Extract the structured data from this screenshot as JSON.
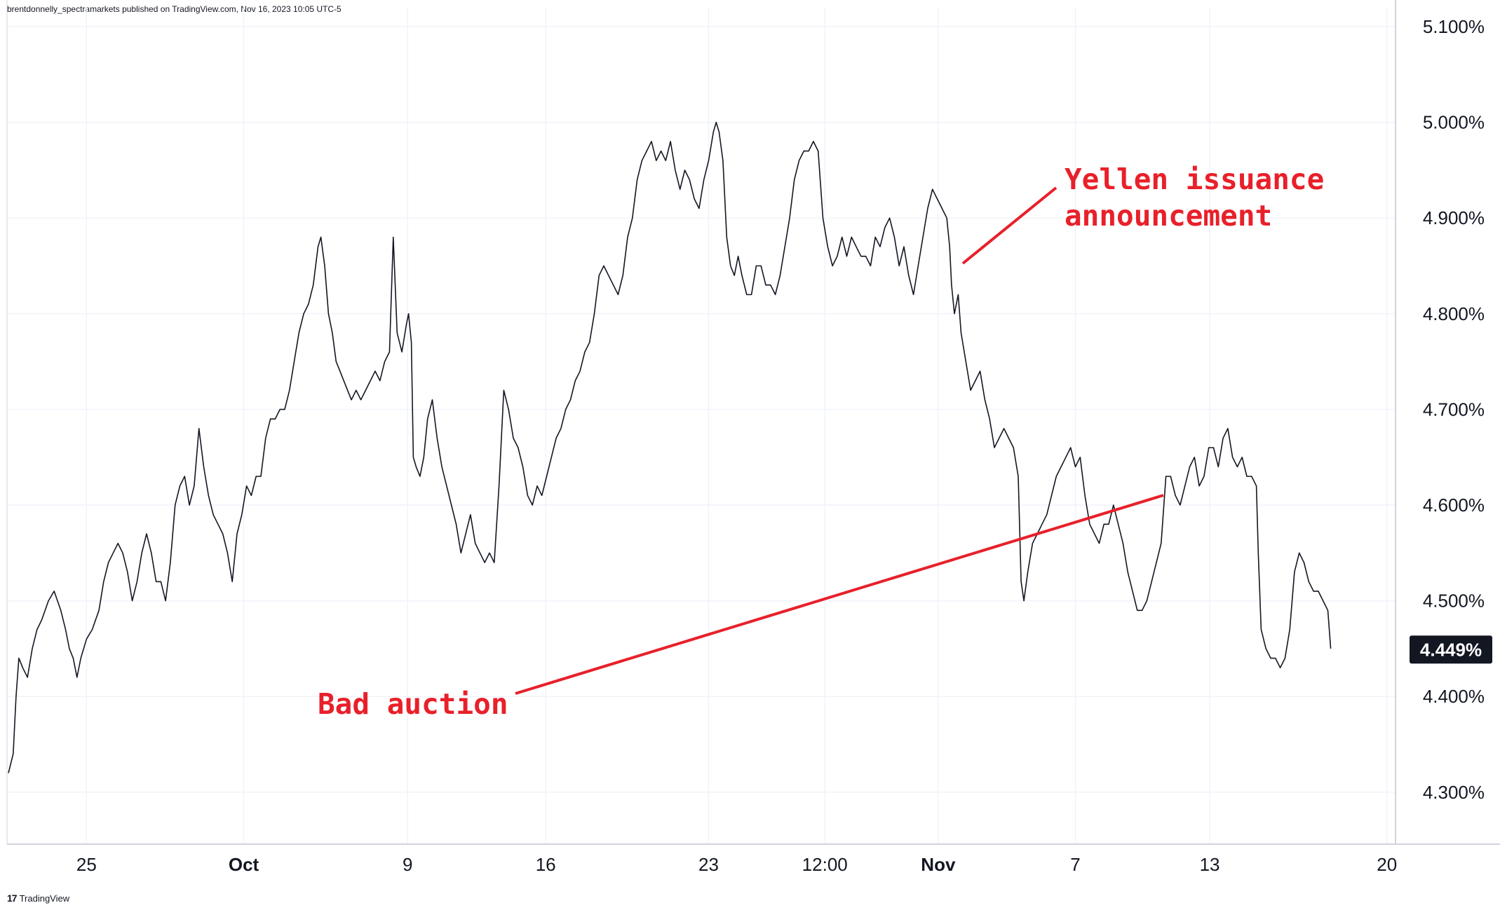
{
  "header": {
    "published_text": "brentdonnelly_spectramarkets published on TradingView.com, Nov 16, 2023 10:05 UTC-5"
  },
  "footer": {
    "logo_glyph": "17",
    "brand": "TradingView"
  },
  "colors": {
    "line": "#131722",
    "annotation": "#e8202a",
    "grid": "#f0f3fa",
    "badge_bg": "#131722",
    "badge_text": "#ffffff"
  },
  "chart_data": {
    "type": "line",
    "title": "",
    "xlabel": "",
    "ylabel": "",
    "ylim": [
      4.22,
      5.12
    ],
    "xlim": [
      0,
      1445
    ],
    "y_ticks": [
      {
        "value": 5.1,
        "label": "5.100%"
      },
      {
        "value": 5.0,
        "label": "5.000%"
      },
      {
        "value": 4.9,
        "label": "4.900%"
      },
      {
        "value": 4.8,
        "label": "4.800%"
      },
      {
        "value": 4.7,
        "label": "4.700%"
      },
      {
        "value": 4.6,
        "label": "4.600%"
      },
      {
        "value": 4.5,
        "label": "4.500%"
      },
      {
        "value": 4.4,
        "label": "4.400%"
      },
      {
        "value": 4.3,
        "label": "4.300%"
      }
    ],
    "x_ticks": [
      {
        "x": 82,
        "label": "25"
      },
      {
        "x": 247,
        "label": "Oct"
      },
      {
        "x": 419,
        "label": "9"
      },
      {
        "x": 564,
        "label": "16"
      },
      {
        "x": 735,
        "label": "23"
      },
      {
        "x": 857,
        "label": "12:00"
      },
      {
        "x": 976,
        "label": "Nov"
      },
      {
        "x": 1120,
        "label": "7"
      },
      {
        "x": 1261,
        "label": "13"
      },
      {
        "x": 1447,
        "label": "20"
      }
    ],
    "last_value": {
      "value": 4.449,
      "label": "4.449%"
    },
    "series": [
      {
        "points": [
          [
            0,
            4.32
          ],
          [
            5,
            4.34
          ],
          [
            8,
            4.4
          ],
          [
            11,
            4.44
          ],
          [
            15,
            4.43
          ],
          [
            20,
            4.42
          ],
          [
            25,
            4.45
          ],
          [
            30,
            4.47
          ],
          [
            35,
            4.48
          ],
          [
            42,
            4.5
          ],
          [
            48,
            4.51
          ],
          [
            55,
            4.49
          ],
          [
            60,
            4.47
          ],
          [
            64,
            4.45
          ],
          [
            68,
            4.44
          ],
          [
            72,
            4.42
          ],
          [
            76,
            4.44
          ],
          [
            82,
            4.46
          ],
          [
            88,
            4.47
          ],
          [
            95,
            4.49
          ],
          [
            100,
            4.52
          ],
          [
            105,
            4.54
          ],
          [
            110,
            4.55
          ],
          [
            115,
            4.56
          ],
          [
            120,
            4.55
          ],
          [
            125,
            4.53
          ],
          [
            130,
            4.5
          ],
          [
            135,
            4.52
          ],
          [
            140,
            4.55
          ],
          [
            145,
            4.57
          ],
          [
            150,
            4.55
          ],
          [
            155,
            4.52
          ],
          [
            160,
            4.52
          ],
          [
            165,
            4.5
          ],
          [
            170,
            4.54
          ],
          [
            175,
            4.6
          ],
          [
            180,
            4.62
          ],
          [
            185,
            4.63
          ],
          [
            190,
            4.6
          ],
          [
            195,
            4.62
          ],
          [
            200,
            4.68
          ],
          [
            205,
            4.64
          ],
          [
            210,
            4.61
          ],
          [
            215,
            4.59
          ],
          [
            220,
            4.58
          ],
          [
            225,
            4.57
          ],
          [
            230,
            4.55
          ],
          [
            235,
            4.52
          ],
          [
            240,
            4.57
          ],
          [
            245,
            4.59
          ],
          [
            250,
            4.62
          ],
          [
            255,
            4.61
          ],
          [
            260,
            4.63
          ],
          [
            265,
            4.63
          ],
          [
            270,
            4.67
          ],
          [
            275,
            4.69
          ],
          [
            280,
            4.69
          ],
          [
            285,
            4.7
          ],
          [
            290,
            4.7
          ],
          [
            295,
            4.72
          ],
          [
            300,
            4.75
          ],
          [
            305,
            4.78
          ],
          [
            310,
            4.8
          ],
          [
            315,
            4.81
          ],
          [
            320,
            4.83
          ],
          [
            325,
            4.87
          ],
          [
            328,
            4.88
          ],
          [
            332,
            4.85
          ],
          [
            336,
            4.8
          ],
          [
            340,
            4.78
          ],
          [
            344,
            4.75
          ],
          [
            348,
            4.74
          ],
          [
            352,
            4.73
          ],
          [
            356,
            4.72
          ],
          [
            360,
            4.71
          ],
          [
            365,
            4.72
          ],
          [
            370,
            4.71
          ],
          [
            375,
            4.72
          ],
          [
            380,
            4.73
          ],
          [
            385,
            4.74
          ],
          [
            390,
            4.73
          ],
          [
            395,
            4.75
          ],
          [
            400,
            4.76
          ],
          [
            404,
            4.88
          ],
          [
            408,
            4.78
          ],
          [
            413,
            4.76
          ],
          [
            418,
            4.79
          ],
          [
            420,
            4.8
          ],
          [
            423,
            4.77
          ],
          [
            425,
            4.65
          ],
          [
            428,
            4.64
          ],
          [
            432,
            4.63
          ],
          [
            436,
            4.65
          ],
          [
            440,
            4.69
          ],
          [
            445,
            4.71
          ],
          [
            450,
            4.67
          ],
          [
            455,
            4.64
          ],
          [
            460,
            4.62
          ],
          [
            465,
            4.6
          ],
          [
            470,
            4.58
          ],
          [
            475,
            4.55
          ],
          [
            480,
            4.57
          ],
          [
            485,
            4.59
          ],
          [
            490,
            4.56
          ],
          [
            495,
            4.55
          ],
          [
            500,
            4.54
          ],
          [
            505,
            4.55
          ],
          [
            510,
            4.54
          ],
          [
            515,
            4.62
          ],
          [
            520,
            4.72
          ],
          [
            525,
            4.7
          ],
          [
            530,
            4.67
          ],
          [
            535,
            4.66
          ],
          [
            540,
            4.64
          ],
          [
            545,
            4.61
          ],
          [
            550,
            4.6
          ],
          [
            555,
            4.62
          ],
          [
            560,
            4.61
          ],
          [
            565,
            4.63
          ],
          [
            570,
            4.65
          ],
          [
            575,
            4.67
          ],
          [
            580,
            4.68
          ],
          [
            585,
            4.7
          ],
          [
            590,
            4.71
          ],
          [
            595,
            4.73
          ],
          [
            600,
            4.74
          ],
          [
            605,
            4.76
          ],
          [
            610,
            4.77
          ],
          [
            615,
            4.8
          ],
          [
            620,
            4.84
          ],
          [
            625,
            4.85
          ],
          [
            630,
            4.84
          ],
          [
            635,
            4.83
          ],
          [
            640,
            4.82
          ],
          [
            645,
            4.84
          ],
          [
            650,
            4.88
          ],
          [
            655,
            4.9
          ],
          [
            660,
            4.94
          ],
          [
            665,
            4.96
          ],
          [
            670,
            4.97
          ],
          [
            675,
            4.98
          ],
          [
            680,
            4.96
          ],
          [
            685,
            4.97
          ],
          [
            690,
            4.96
          ],
          [
            695,
            4.98
          ],
          [
            700,
            4.95
          ],
          [
            705,
            4.93
          ],
          [
            710,
            4.95
          ],
          [
            715,
            4.94
          ],
          [
            720,
            4.92
          ],
          [
            725,
            4.91
          ],
          [
            730,
            4.94
          ],
          [
            735,
            4.96
          ],
          [
            740,
            4.99
          ],
          [
            743,
            5.0
          ],
          [
            746,
            4.99
          ],
          [
            750,
            4.96
          ],
          [
            754,
            4.88
          ],
          [
            758,
            4.85
          ],
          [
            762,
            4.84
          ],
          [
            766,
            4.86
          ],
          [
            770,
            4.84
          ],
          [
            775,
            4.82
          ],
          [
            780,
            4.82
          ],
          [
            785,
            4.85
          ],
          [
            790,
            4.85
          ],
          [
            795,
            4.83
          ],
          [
            800,
            4.83
          ],
          [
            805,
            4.82
          ],
          [
            810,
            4.84
          ],
          [
            815,
            4.87
          ],
          [
            820,
            4.9
          ],
          [
            825,
            4.94
          ],
          [
            830,
            4.96
          ],
          [
            835,
            4.97
          ],
          [
            840,
            4.97
          ],
          [
            845,
            4.98
          ],
          [
            850,
            4.97
          ],
          [
            855,
            4.9
          ],
          [
            860,
            4.87
          ],
          [
            865,
            4.85
          ],
          [
            870,
            4.86
          ],
          [
            875,
            4.88
          ],
          [
            880,
            4.86
          ],
          [
            885,
            4.88
          ],
          [
            890,
            4.87
          ],
          [
            895,
            4.86
          ],
          [
            900,
            4.86
          ],
          [
            905,
            4.85
          ],
          [
            910,
            4.88
          ],
          [
            915,
            4.87
          ],
          [
            920,
            4.89
          ],
          [
            925,
            4.9
          ],
          [
            930,
            4.88
          ],
          [
            935,
            4.85
          ],
          [
            940,
            4.87
          ],
          [
            945,
            4.84
          ],
          [
            950,
            4.82
          ],
          [
            955,
            4.85
          ],
          [
            960,
            4.88
          ],
          [
            965,
            4.91
          ],
          [
            970,
            4.93
          ],
          [
            975,
            4.92
          ],
          [
            980,
            4.91
          ],
          [
            985,
            4.9
          ],
          [
            988,
            4.87
          ],
          [
            990,
            4.83
          ],
          [
            993,
            4.8
          ],
          [
            997,
            4.82
          ],
          [
            1000,
            4.78
          ],
          [
            1005,
            4.75
          ],
          [
            1010,
            4.72
          ],
          [
            1015,
            4.73
          ],
          [
            1020,
            4.74
          ],
          [
            1025,
            4.71
          ],
          [
            1030,
            4.69
          ],
          [
            1035,
            4.66
          ],
          [
            1040,
            4.67
          ],
          [
            1045,
            4.68
          ],
          [
            1050,
            4.67
          ],
          [
            1055,
            4.66
          ],
          [
            1060,
            4.63
          ],
          [
            1063,
            4.52
          ],
          [
            1066,
            4.5
          ],
          [
            1070,
            4.53
          ],
          [
            1075,
            4.56
          ],
          [
            1080,
            4.57
          ],
          [
            1085,
            4.58
          ],
          [
            1090,
            4.59
          ],
          [
            1095,
            4.61
          ],
          [
            1100,
            4.63
          ],
          [
            1105,
            4.64
          ],
          [
            1110,
            4.65
          ],
          [
            1115,
            4.66
          ],
          [
            1120,
            4.64
          ],
          [
            1125,
            4.65
          ],
          [
            1130,
            4.61
          ],
          [
            1135,
            4.58
          ],
          [
            1140,
            4.57
          ],
          [
            1145,
            4.56
          ],
          [
            1150,
            4.58
          ],
          [
            1155,
            4.58
          ],
          [
            1160,
            4.6
          ],
          [
            1165,
            4.58
          ],
          [
            1170,
            4.56
          ],
          [
            1175,
            4.53
          ],
          [
            1180,
            4.51
          ],
          [
            1185,
            4.49
          ],
          [
            1190,
            4.49
          ],
          [
            1195,
            4.5
          ],
          [
            1200,
            4.52
          ],
          [
            1205,
            4.54
          ],
          [
            1210,
            4.56
          ],
          [
            1215,
            4.63
          ],
          [
            1220,
            4.63
          ],
          [
            1225,
            4.61
          ],
          [
            1230,
            4.6
          ],
          [
            1235,
            4.62
          ],
          [
            1240,
            4.64
          ],
          [
            1245,
            4.65
          ],
          [
            1250,
            4.62
          ],
          [
            1255,
            4.63
          ],
          [
            1260,
            4.66
          ],
          [
            1265,
            4.66
          ],
          [
            1270,
            4.64
          ],
          [
            1275,
            4.67
          ],
          [
            1280,
            4.68
          ],
          [
            1285,
            4.65
          ],
          [
            1290,
            4.64
          ],
          [
            1295,
            4.65
          ],
          [
            1300,
            4.63
          ],
          [
            1305,
            4.63
          ],
          [
            1310,
            4.62
          ],
          [
            1312,
            4.55
          ],
          [
            1315,
            4.47
          ],
          [
            1320,
            4.45
          ],
          [
            1325,
            4.44
          ],
          [
            1330,
            4.44
          ],
          [
            1335,
            4.43
          ],
          [
            1340,
            4.44
          ],
          [
            1345,
            4.47
          ],
          [
            1350,
            4.53
          ],
          [
            1355,
            4.55
          ],
          [
            1360,
            4.54
          ],
          [
            1365,
            4.52
          ],
          [
            1370,
            4.51
          ],
          [
            1375,
            4.51
          ],
          [
            1380,
            4.5
          ],
          [
            1385,
            4.49
          ],
          [
            1388,
            4.45
          ]
        ]
      }
    ],
    "annotations": [
      {
        "text_lines": [
          "Yellen issuance",
          "announcement"
        ]
      },
      {
        "text_lines": [
          "Bad auction"
        ]
      }
    ]
  }
}
